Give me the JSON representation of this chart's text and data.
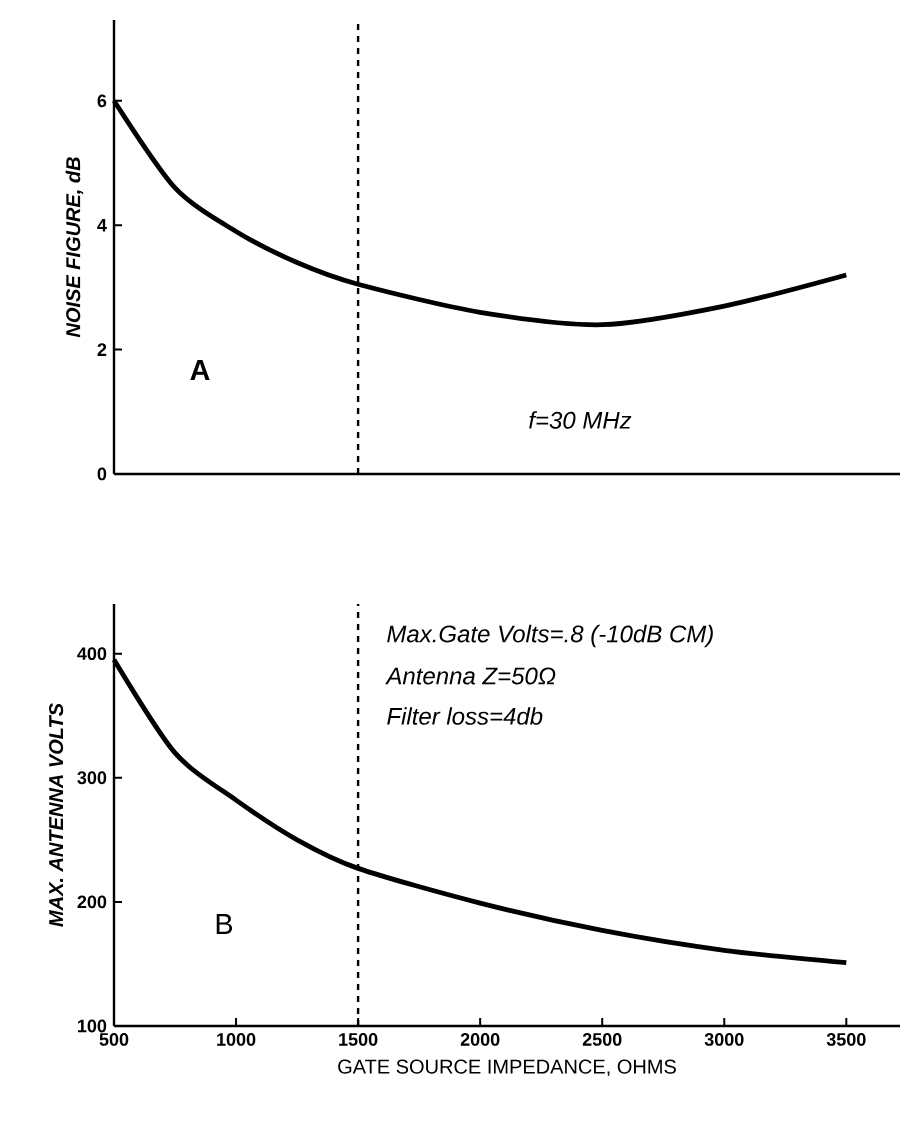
{
  "chart_data": [
    {
      "type": "line",
      "ylabel": "NOISE FIGURE, dB",
      "color": "#000000",
      "tick_labels": "y",
      "x": [
        500,
        750,
        1000,
        1250,
        1500,
        2000,
        2500,
        3000,
        3500
      ],
      "values": [
        6.0,
        4.6,
        3.9,
        3.4,
        3.05,
        2.6,
        2.4,
        2.7,
        3.2
      ],
      "xlim": [
        500,
        3720
      ],
      "ylim": [
        0,
        7.3
      ],
      "yticks": [
        0,
        2,
        4,
        6
      ],
      "ref_lines": [
        {
          "axis": "x",
          "value": 1500,
          "line_style": "dashed",
          "color": "#000000"
        }
      ],
      "annotations": [
        "A",
        "f=30 MHz"
      ]
    },
    {
      "type": "line",
      "xlabel": "GATE SOURCE IMPEDANCE, OHMS",
      "ylabel": "MAX. ANTENNA VOLTS",
      "color": "#000000",
      "x": [
        500,
        750,
        1000,
        1250,
        1500,
        2000,
        2500,
        3000,
        3500
      ],
      "values": [
        395,
        320,
        282,
        250,
        227,
        199,
        177,
        161,
        151
      ],
      "xlim": [
        500,
        3720
      ],
      "ylim": [
        100,
        440
      ],
      "xticks": [
        500,
        1000,
        1500,
        2000,
        2500,
        3000,
        3500
      ],
      "yticks": [
        100,
        200,
        300,
        400
      ],
      "ref_lines": [
        {
          "axis": "x",
          "value": 1500,
          "line_style": "dashed",
          "color": "#000000"
        }
      ],
      "annotations": [
        "B",
        "Max.Gate Volts=.8 (-10dB CM)",
        "Antenna Z=50Ω",
        "Filter loss=4db"
      ]
    }
  ]
}
